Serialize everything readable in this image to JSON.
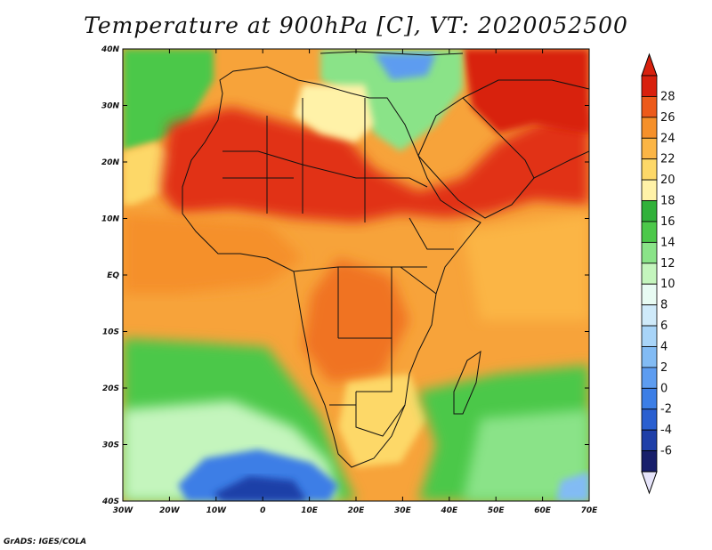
{
  "title": "Temperature at 900hPa [C], VT: 2020052500",
  "credit": "GrADS: IGES/COLA",
  "map": {
    "lon_ticks": [
      "30W",
      "20W",
      "10W",
      "0",
      "10E",
      "20E",
      "30E",
      "40E",
      "50E",
      "60E",
      "70E"
    ],
    "lat_ticks": [
      "40N",
      "30N",
      "20N",
      "10N",
      "EQ",
      "10S",
      "20S",
      "30S",
      "40S"
    ]
  },
  "colorbar": {
    "levels": [
      "-6",
      "-4",
      "-2",
      "0",
      "2",
      "4",
      "6",
      "8",
      "10",
      "12",
      "14",
      "16",
      "18",
      "20",
      "22",
      "24",
      "26",
      "28"
    ],
    "colors": [
      "#181f6b",
      "#1f3fa8",
      "#2a5fd0",
      "#3c7ee6",
      "#5d9cf0",
      "#82bbf4",
      "#a8d4f8",
      "#cfeafa",
      "#e8fbf3",
      "#c4f5bd",
      "#8ae388",
      "#4cc84a",
      "#31b13a",
      "#fff2a8",
      "#fdd868",
      "#fbb545",
      "#f5902a",
      "#ec5a1a",
      "#d8200d"
    ],
    "low_color": "#e6e4fa",
    "high_color": "#d8200d"
  }
}
